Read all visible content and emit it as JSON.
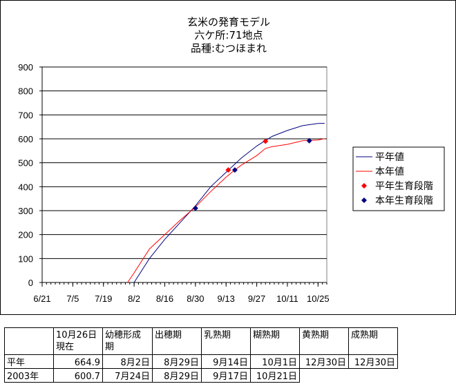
{
  "title_lines": [
    "玄米の発育モデル",
    "六ケ所:71地点",
    "品種:むつほまれ"
  ],
  "table": {
    "header": [
      "",
      "10月26日\n現在",
      "幼穂形成\n期",
      "出穂期",
      "乳熟期",
      "糊熟期",
      "黄熟期",
      "成熟期"
    ],
    "rows": [
      [
        "平年",
        "664.9",
        "8月2日",
        "8月29日",
        "9月14日",
        "10月1日",
        "12月30日",
        "12月30日"
      ],
      [
        "2003年",
        "600.7",
        "7月24日",
        "8月29日",
        "9月17日",
        "10月21日",
        "",
        ""
      ]
    ]
  },
  "chart_data": {
    "type": "line",
    "x_ticks": [
      "6/21",
      "7/5",
      "7/19",
      "8/2",
      "8/16",
      "8/30",
      "9/13",
      "9/27",
      "10/11",
      "10/25"
    ],
    "xlim": [
      "6/21",
      "10/29"
    ],
    "ylim": [
      0,
      900
    ],
    "y_ticks": [
      0,
      100,
      200,
      300,
      400,
      500,
      600,
      700,
      800,
      900
    ],
    "grid": "horizontal",
    "legend_position": "right",
    "series": [
      {
        "name": "平年値",
        "kind": "line",
        "color": "#000080",
        "points": [
          [
            "8/2",
            0
          ],
          [
            "8/9",
            100
          ],
          [
            "8/16",
            180
          ],
          [
            "8/23",
            250
          ],
          [
            "8/30",
            320
          ],
          [
            "9/6",
            400
          ],
          [
            "9/13",
            460
          ],
          [
            "9/20",
            520
          ],
          [
            "9/27",
            570
          ],
          [
            "10/4",
            610
          ],
          [
            "10/11",
            635
          ],
          [
            "10/18",
            655
          ],
          [
            "10/25",
            664
          ],
          [
            "10/28",
            665
          ]
        ]
      },
      {
        "name": "本年値",
        "kind": "line",
        "color": "#ff0000",
        "points": [
          [
            "7/30",
            0
          ],
          [
            "8/2",
            40
          ],
          [
            "8/9",
            140
          ],
          [
            "8/16",
            200
          ],
          [
            "8/23",
            260
          ],
          [
            "8/30",
            315
          ],
          [
            "9/6",
            380
          ],
          [
            "9/13",
            440
          ],
          [
            "9/17",
            470
          ],
          [
            "9/20",
            490
          ],
          [
            "9/27",
            530
          ],
          [
            "10/1",
            560
          ],
          [
            "10/4",
            567
          ],
          [
            "10/11",
            577
          ],
          [
            "10/18",
            592
          ],
          [
            "10/25",
            595
          ],
          [
            "10/28",
            601
          ]
        ]
      },
      {
        "name": "平年生育段階",
        "kind": "marker",
        "color": "#ff0000",
        "points": [
          [
            "9/14",
            470
          ],
          [
            "10/1",
            590
          ]
        ]
      },
      {
        "name": "本年生育段階",
        "kind": "marker",
        "color": "#000080",
        "points": [
          [
            "8/30",
            310
          ],
          [
            "9/17",
            470
          ],
          [
            "10/21",
            592
          ]
        ]
      }
    ]
  }
}
